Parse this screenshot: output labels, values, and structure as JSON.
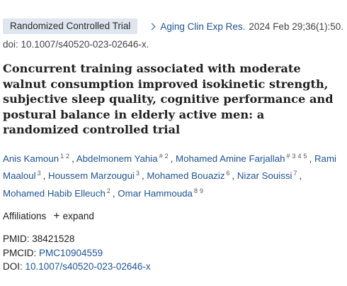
{
  "header": {
    "article_type": "Randomized Controlled Trial",
    "journal": "Aging Clin Exp Res.",
    "citation": "2024 Feb 29;36(1):50.",
    "doi_line": "doi: 10.1007/s40520-023-02646-x."
  },
  "title": "Concurrent training associated with moderate walnut consumption improved isokinetic strength, subjective sleep quality, cognitive performance and postural balance in elderly active men: a randomized controlled trial",
  "authors": [
    {
      "name": "Anis Kamoun",
      "aff": [
        "1",
        "2"
      ]
    },
    {
      "name": "Abdelmonem Yahia",
      "aff": [
        "#",
        "2"
      ]
    },
    {
      "name": "Mohamed Amine Farjallah",
      "aff": [
        "#",
        "3",
        "4",
        "5"
      ]
    },
    {
      "name": "Rami Maaloul",
      "aff": [
        "3"
      ]
    },
    {
      "name": "Houssem Marzougui",
      "aff": [
        "3"
      ]
    },
    {
      "name": "Mohamed Bouaziz",
      "aff": [
        "6"
      ]
    },
    {
      "name": "Nizar Souissi",
      "aff": [
        "7"
      ]
    },
    {
      "name": "Mohamed Habib Elleuch",
      "aff": [
        "2"
      ]
    },
    {
      "name": "Omar Hammouda",
      "aff": [
        "8",
        "9"
      ]
    }
  ],
  "affiliations": {
    "label": "Affiliations",
    "expand_label": "expand"
  },
  "identifiers": {
    "pmid_label": "PMID:",
    "pmid": "38421528",
    "pmcid_label": "PMCID:",
    "pmcid": "PMC10904559",
    "doi_label": "DOI:",
    "doi": "10.1007/s40520-023-02646-x"
  },
  "colors": {
    "link": "#205493",
    "badge_bg": "#dfe6ef"
  }
}
